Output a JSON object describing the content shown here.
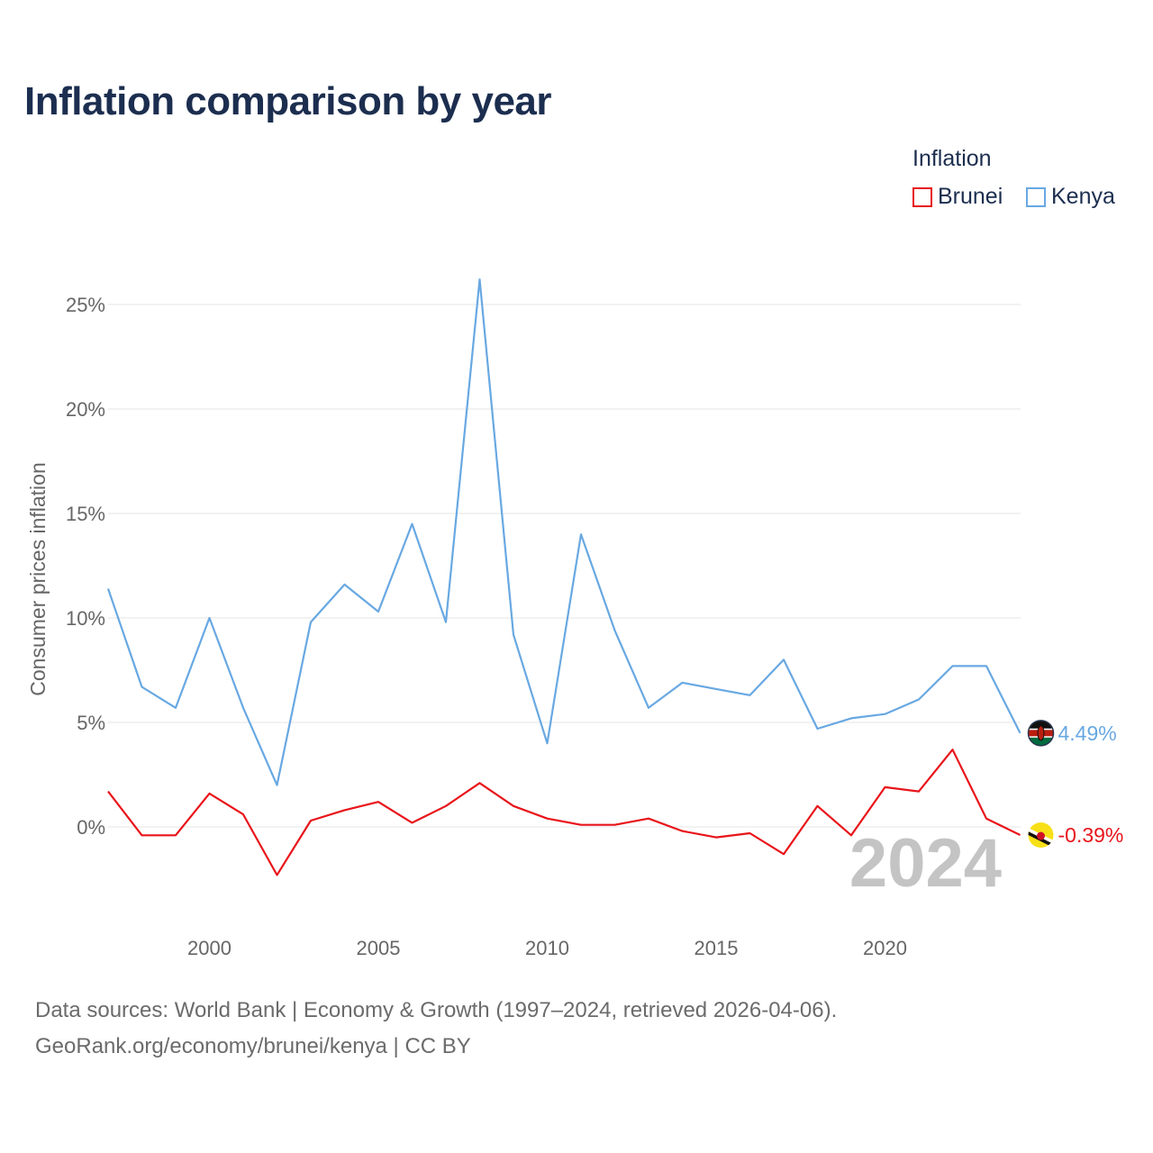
{
  "title": "Inflation comparison by year",
  "legend": {
    "title": "Inflation",
    "items": [
      {
        "label": "Brunei",
        "color": "#e8141a"
      },
      {
        "label": "Kenya",
        "color": "#68a8e2"
      }
    ]
  },
  "footer": {
    "line1": "Data sources: World Bank | Economy & Growth (1997–2024, retrieved 2026-04-06).",
    "line2": "GeoRank.org/economy/brunei/kenya | CC BY"
  },
  "chart_data": {
    "type": "line",
    "title": "Inflation comparison by year",
    "xlabel": "",
    "ylabel": "Consumer prices inflation",
    "xlim": [
      1997,
      2024
    ],
    "ylim": [
      -4,
      27
    ],
    "x_ticks": [
      2000,
      2005,
      2010,
      2015,
      2020
    ],
    "x_tick_labels": [
      "2000",
      "2005",
      "2010",
      "2015",
      "2020"
    ],
    "y_ticks": [
      0,
      5,
      10,
      15,
      20,
      25
    ],
    "y_tick_labels": [
      "0%",
      "5%",
      "10%",
      "15%",
      "20%",
      "25%"
    ],
    "grid": true,
    "legend_position": "top-right",
    "current_year_label": "2024",
    "x": [
      1997,
      1998,
      1999,
      2000,
      2001,
      2002,
      2003,
      2004,
      2005,
      2006,
      2007,
      2008,
      2009,
      2010,
      2011,
      2012,
      2013,
      2014,
      2015,
      2016,
      2017,
      2018,
      2019,
      2020,
      2021,
      2022,
      2023,
      2024
    ],
    "series": [
      {
        "name": "Brunei",
        "color": "#e8141a",
        "values": [
          1.7,
          -0.4,
          -0.4,
          1.6,
          0.6,
          -2.3,
          0.3,
          0.8,
          1.2,
          0.2,
          1.0,
          2.1,
          1.0,
          0.4,
          0.1,
          0.1,
          0.4,
          -0.2,
          -0.5,
          -0.3,
          -1.3,
          1.0,
          -0.4,
          1.9,
          1.7,
          3.7,
          0.4,
          -0.39
        ],
        "end_label": "-0.39%"
      },
      {
        "name": "Kenya",
        "color": "#68a8e2",
        "values": [
          11.4,
          6.7,
          5.7,
          10.0,
          5.7,
          2.0,
          9.8,
          11.6,
          10.3,
          14.5,
          9.8,
          26.2,
          9.2,
          4.0,
          14.0,
          9.4,
          5.7,
          6.9,
          6.6,
          6.3,
          8.0,
          4.7,
          5.2,
          5.4,
          6.1,
          7.7,
          7.7,
          4.49
        ],
        "end_label": "4.49%"
      }
    ]
  }
}
